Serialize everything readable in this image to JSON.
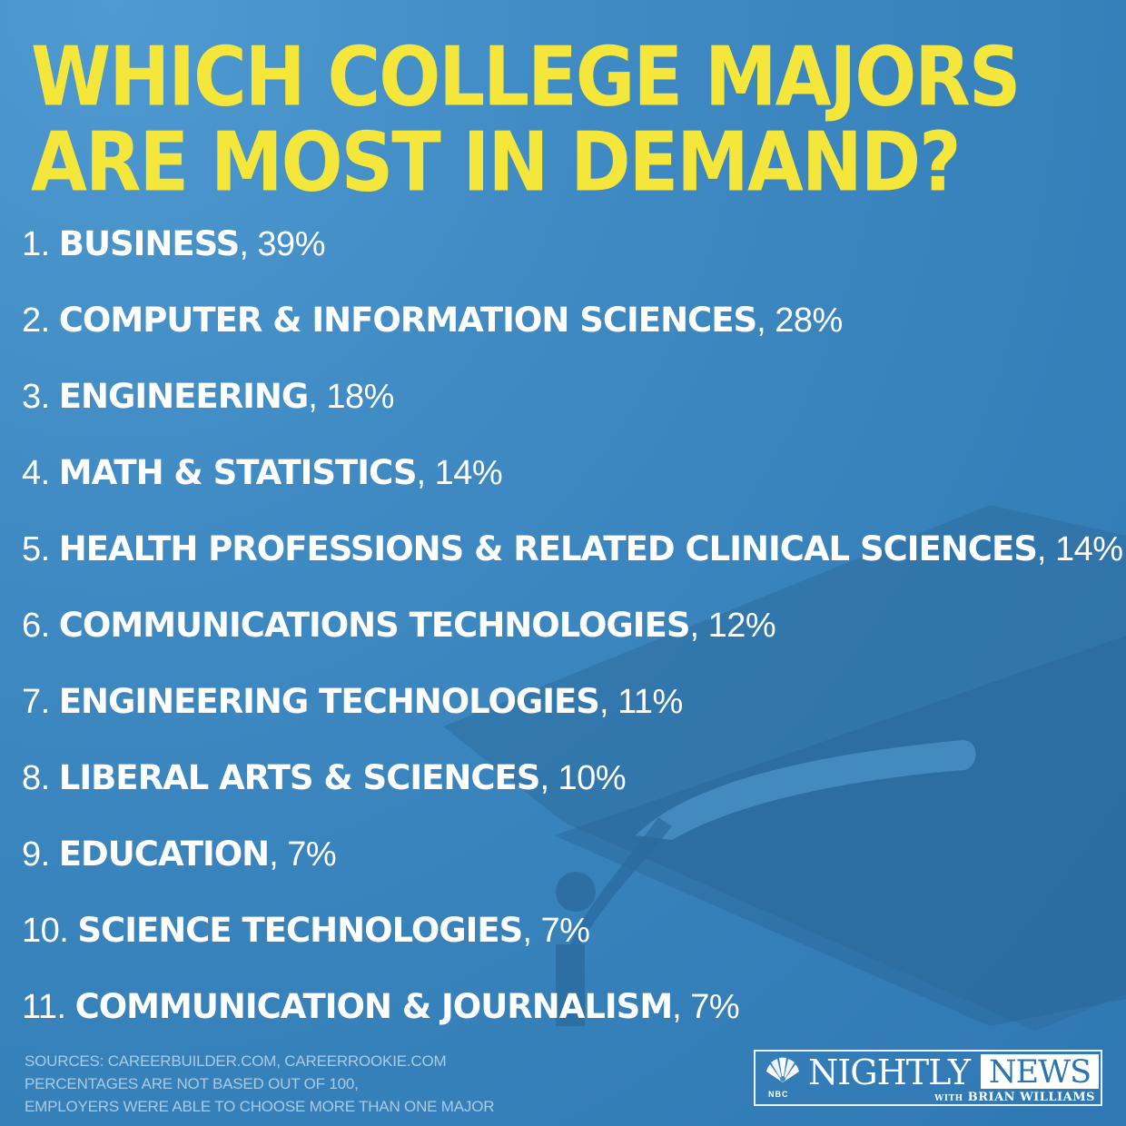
{
  "colors": {
    "background": "#3f8ac3",
    "headline": "#f4e63a",
    "text": "#ffffff",
    "footer": "#a8cbe6",
    "cap_shape": "#2e6d9f"
  },
  "headline": {
    "line1": "WHICH COLLEGE MAJORS",
    "line2": "ARE MOST IN DEMAND?"
  },
  "majors": [
    {
      "num": "1.",
      "name": "BUSINESS",
      "pct": ", 39%"
    },
    {
      "num": "2.",
      "name": "COMPUTER & INFORMATION SCIENCES",
      "pct": ", 28%"
    },
    {
      "num": "3.",
      "name": "ENGINEERING",
      "pct": ", 18%"
    },
    {
      "num": "4.",
      "name": "MATH & STATISTICS",
      "pct": ", 14%"
    },
    {
      "num": "5.",
      "name": "HEALTH PROFESSIONS & RELATED CLINICAL SCIENCES",
      "pct": ", 14%"
    },
    {
      "num": "6.",
      "name": "COMMUNICATIONS TECHNOLOGIES",
      "pct": ", 12%"
    },
    {
      "num": "7.",
      "name": "ENGINEERING TECHNOLOGIES",
      "pct": ", 11%"
    },
    {
      "num": "8.",
      "name": "LIBERAL ARTS & SCIENCES",
      "pct": ", 10%"
    },
    {
      "num": "9.",
      "name": "EDUCATION",
      "pct": ", 7%"
    },
    {
      "num": "10.",
      "name": "SCIENCE TECHNOLOGIES",
      "pct": ", 7%"
    },
    {
      "num": "11.",
      "name": "COMMUNICATION & JOURNALISM",
      "pct": ", 7%"
    }
  ],
  "footer": {
    "line1": "SOURCES: CAREERBUILDER.COM, CAREERROOKIE.COM",
    "line2": "PERCENTAGES ARE NOT BASED OUT OF 100,",
    "line3": "EMPLOYERS WERE ABLE TO CHOOSE MORE THAN ONE MAJOR"
  },
  "logo": {
    "network": "NBC",
    "show_part1": "NIGHTLY",
    "show_part2": "NEWS",
    "with": "WITH",
    "anchor": "BRIAN WILLIAMS"
  },
  "icons": {
    "background": "graduation-cap-icon",
    "logo": "nbc-peacock-icon"
  }
}
